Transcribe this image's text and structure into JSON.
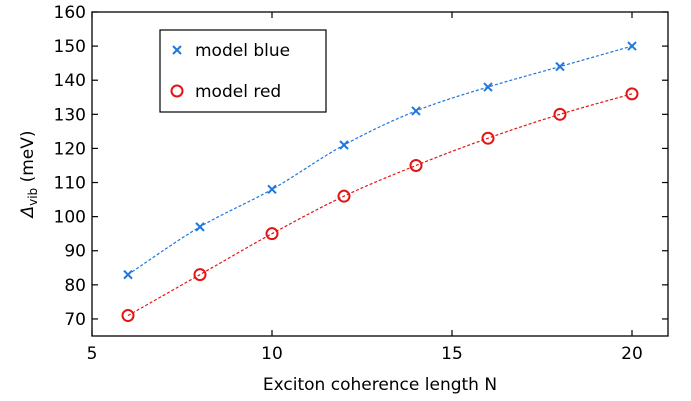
{
  "chart_data": {
    "type": "scatter",
    "xlabel": "Exciton coherence length N",
    "ylabel": {
      "symbol": "Δ",
      "subscript": "vib",
      "unit": " (meV)"
    },
    "xlim": [
      5,
      21
    ],
    "ylim": [
      65,
      160
    ],
    "x_ticks": [
      5,
      10,
      15,
      20
    ],
    "y_ticks": [
      70,
      80,
      90,
      100,
      110,
      120,
      130,
      140,
      150,
      160
    ],
    "grid": false,
    "legend_position": "top-left",
    "series": [
      {
        "name": "model blue",
        "marker": "x",
        "color": "#1f77e0",
        "x": [
          6,
          8,
          10,
          12,
          14,
          16,
          18,
          20
        ],
        "y": [
          83,
          97,
          108,
          121,
          131,
          138,
          144,
          150
        ]
      },
      {
        "name": "model red",
        "marker": "circle",
        "color": "#e41414",
        "x": [
          6,
          8,
          10,
          12,
          14,
          16,
          18,
          20
        ],
        "y": [
          71,
          83,
          95,
          106,
          115,
          123,
          130,
          136
        ]
      }
    ]
  }
}
